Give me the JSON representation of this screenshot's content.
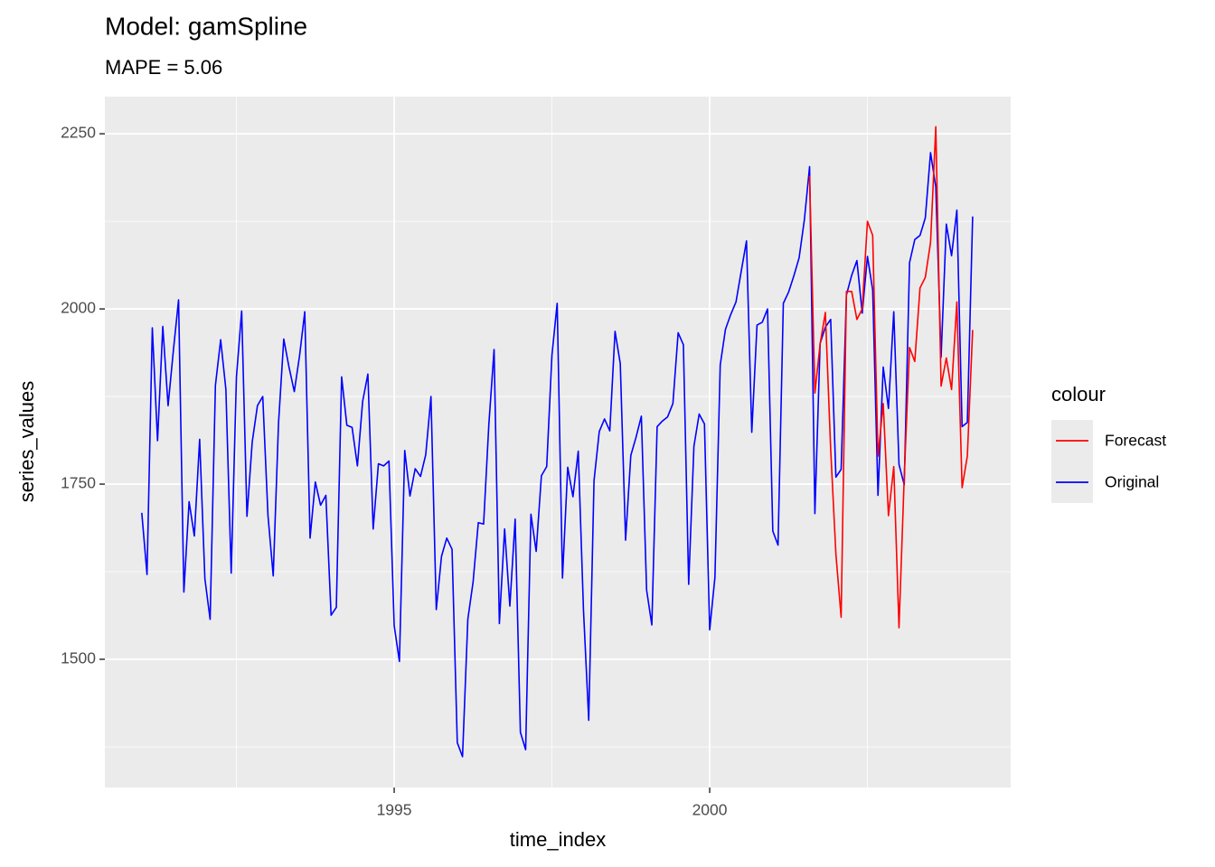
{
  "chart_data": {
    "type": "line",
    "title": "Model:  gamSpline",
    "subtitle": "MAPE = 5.06",
    "x_label": "time_index",
    "y_label": "series_values",
    "legend_title": "colour",
    "legend_position": "right",
    "grid": true,
    "xlim": [
      1990.415,
      2004.77
    ],
    "ylim": [
      1317,
      2303
    ],
    "xticks": [
      1995,
      2000
    ],
    "yticks": [
      1500,
      1750,
      2000,
      2250
    ],
    "x_minor_ticks": [
      1992.5,
      1997.5,
      2002.5
    ],
    "y_minor_ticks": [
      1375,
      1625,
      1875,
      2125
    ],
    "series": [
      {
        "name": "Forecast",
        "color": "#ff0000",
        "x": [
          2001.583,
          2001.667,
          2001.75,
          2001.833,
          2001.917,
          2002,
          2002.083,
          2002.167,
          2002.25,
          2002.333,
          2002.417,
          2002.5,
          2002.583,
          2002.667,
          2002.75,
          2002.833,
          2002.917,
          2003,
          2003.083,
          2003.167,
          2003.25,
          2003.333,
          2003.417,
          2003.5,
          2003.583,
          2003.667,
          2003.75,
          2003.833,
          2003.917,
          2004,
          2004.083,
          2004.167
        ],
        "values": [
          2190,
          1880,
          1950,
          1995,
          1800,
          1650,
          1560,
          2025,
          2025,
          1985,
          2000,
          2125,
          2105,
          1790,
          1865,
          1705,
          1775,
          1545,
          1760,
          1945,
          1925,
          2030,
          2045,
          2095,
          2260,
          1890,
          1930,
          1885,
          2010,
          1745,
          1790,
          1970
        ]
      },
      {
        "name": "Original",
        "color": "#0000ff",
        "x": [
          1991,
          1991.083,
          1991.167,
          1991.25,
          1991.333,
          1991.417,
          1991.5,
          1991.583,
          1991.667,
          1991.75,
          1991.833,
          1991.917,
          1992,
          1992.083,
          1992.167,
          1992.25,
          1992.333,
          1992.417,
          1992.5,
          1992.583,
          1992.667,
          1992.75,
          1992.833,
          1992.917,
          1993,
          1993.083,
          1993.167,
          1993.25,
          1993.333,
          1993.417,
          1993.5,
          1993.583,
          1993.667,
          1993.75,
          1993.833,
          1993.917,
          1994,
          1994.083,
          1994.167,
          1994.25,
          1994.333,
          1994.417,
          1994.5,
          1994.583,
          1994.667,
          1994.75,
          1994.833,
          1994.917,
          1995,
          1995.083,
          1995.167,
          1995.25,
          1995.333,
          1995.417,
          1995.5,
          1995.583,
          1995.667,
          1995.75,
          1995.833,
          1995.917,
          1996,
          1996.083,
          1996.167,
          1996.25,
          1996.333,
          1996.417,
          1996.5,
          1996.583,
          1996.667,
          1996.75,
          1996.833,
          1996.917,
          1997,
          1997.083,
          1997.167,
          1997.25,
          1997.333,
          1997.417,
          1997.5,
          1997.583,
          1997.667,
          1997.75,
          1997.833,
          1997.917,
          1998,
          1998.083,
          1998.167,
          1998.25,
          1998.333,
          1998.417,
          1998.5,
          1998.583,
          1998.667,
          1998.75,
          1998.833,
          1998.917,
          1999,
          1999.083,
          1999.167,
          1999.25,
          1999.333,
          1999.417,
          1999.5,
          1999.583,
          1999.667,
          1999.75,
          1999.833,
          1999.917,
          2000,
          2000.083,
          2000.167,
          2000.25,
          2000.333,
          2000.417,
          2000.5,
          2000.583,
          2000.667,
          2000.75,
          2000.833,
          2000.917,
          2001,
          2001.083,
          2001.167,
          2001.25,
          2001.333,
          2001.417,
          2001.5,
          2001.583,
          2001.667,
          2001.75,
          2001.833,
          2001.917,
          2002,
          2002.083,
          2002.167,
          2002.25,
          2002.333,
          2002.417,
          2002.5,
          2002.583,
          2002.667,
          2002.75,
          2002.833,
          2002.917,
          2003,
          2003.083,
          2003.167,
          2003.25,
          2003.333,
          2003.417,
          2003.5,
          2003.583,
          2003.667,
          2003.75,
          2003.833,
          2003.917,
          2004,
          2004.083,
          2004.167
        ],
        "values": [
          1709,
          1621,
          1973,
          1812,
          1975,
          1862,
          1940,
          2013,
          1596,
          1725,
          1676,
          1814,
          1615,
          1557,
          1891,
          1956,
          1885,
          1623,
          1903,
          1997,
          1704,
          1810,
          1862,
          1875,
          1705,
          1619,
          1837,
          1957,
          1917,
          1882,
          1933,
          1996,
          1673,
          1753,
          1720,
          1734,
          1563,
          1574,
          1903,
          1834,
          1831,
          1776,
          1868,
          1907,
          1686,
          1779,
          1776,
          1783,
          1548,
          1497,
          1798,
          1733,
          1772,
          1761,
          1792,
          1875,
          1571,
          1647,
          1673,
          1657,
          1381,
          1361,
          1557,
          1610,
          1695,
          1693,
          1835,
          1942,
          1551,
          1686,
          1576,
          1700,
          1396,
          1371,
          1707,
          1654,
          1762,
          1775,
          1934,
          2008,
          1616,
          1774,
          1732,
          1797,
          1570,
          1413,
          1755,
          1825,
          1843,
          1826,
          1968,
          1922,
          1670,
          1791,
          1817,
          1847,
          1599,
          1549,
          1832,
          1840,
          1846,
          1865,
          1966,
          1949,
          1607,
          1804,
          1850,
          1836,
          1542,
          1617,
          1920,
          1971,
          1992,
          2010,
          2054,
          2097,
          1824,
          1977,
          1981,
          2000,
          1683,
          1663,
          2008,
          2024,
          2047,
          2073,
          2127,
          2203,
          1708,
          1951,
          1974,
          1985,
          1760,
          1771,
          2020,
          2048,
          2069,
          1994,
          2075,
          2027,
          1734,
          1917,
          1858,
          1996,
          1778,
          1749,
          2066,
          2099,
          2105,
          2130,
          2223,
          2174,
          1931,
          2121,
          2076,
          2141,
          1832,
          1838,
          2132
        ]
      }
    ]
  }
}
